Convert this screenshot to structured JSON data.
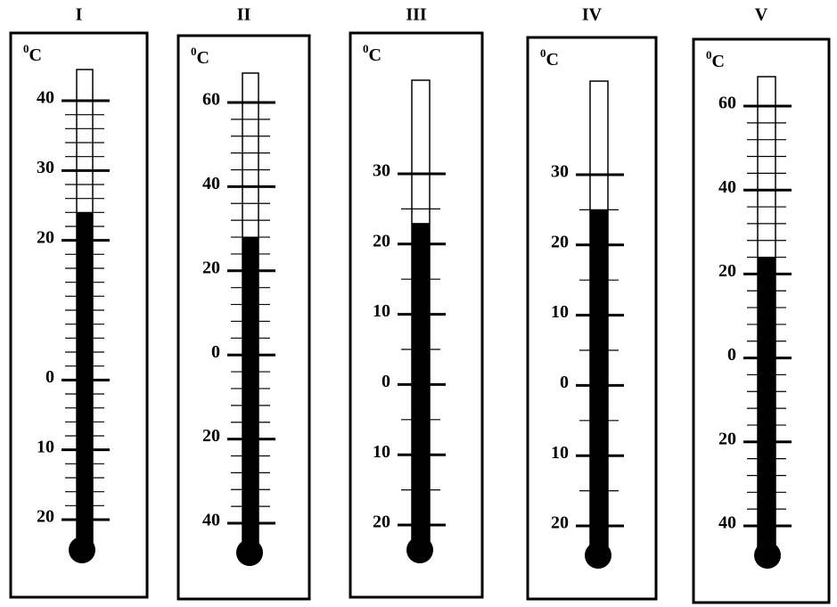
{
  "thermometers": [
    {
      "label": "I",
      "unit_sup": "0",
      "unit": "C",
      "reading": 24,
      "minor_step": 2,
      "ticks": [
        {
          "value": 40,
          "label": "40"
        },
        {
          "value": 30,
          "label": "30"
        },
        {
          "value": 20,
          "label": "20"
        },
        {
          "value": 0,
          "label": "0"
        },
        {
          "value": -10,
          "label": "10"
        },
        {
          "value": -20,
          "label": "20"
        }
      ]
    },
    {
      "label": "II",
      "unit_sup": "0",
      "unit": "C",
      "reading": 28,
      "minor_step": 4,
      "ticks": [
        {
          "value": 60,
          "label": "60"
        },
        {
          "value": 40,
          "label": "40"
        },
        {
          "value": 20,
          "label": "20"
        },
        {
          "value": 0,
          "label": "0"
        },
        {
          "value": -20,
          "label": "20"
        },
        {
          "value": -40,
          "label": "40"
        }
      ]
    },
    {
      "label": "III",
      "unit_sup": "0",
      "unit": "C",
      "reading": 23,
      "minor_step": 5,
      "ticks": [
        {
          "value": 30,
          "label": "30"
        },
        {
          "value": 20,
          "label": "20"
        },
        {
          "value": 10,
          "label": "10"
        },
        {
          "value": 0,
          "label": "0"
        },
        {
          "value": -10,
          "label": "10"
        },
        {
          "value": -20,
          "label": "20"
        }
      ]
    },
    {
      "label": "IV",
      "unit_sup": "0",
      "unit": "C",
      "reading": 25,
      "minor_step": 5,
      "ticks": [
        {
          "value": 30,
          "label": "30"
        },
        {
          "value": 20,
          "label": "20"
        },
        {
          "value": 10,
          "label": "10"
        },
        {
          "value": 0,
          "label": "0"
        },
        {
          "value": -10,
          "label": "10"
        },
        {
          "value": -20,
          "label": "20"
        }
      ]
    },
    {
      "label": "V",
      "unit_sup": "0",
      "unit": "C",
      "reading": 24,
      "minor_step": 4,
      "ticks": [
        {
          "value": 60,
          "label": "60"
        },
        {
          "value": 40,
          "label": "40"
        },
        {
          "value": 20,
          "label": "20"
        },
        {
          "value": 0,
          "label": "0"
        },
        {
          "value": -20,
          "label": "20"
        },
        {
          "value": -40,
          "label": "40"
        }
      ]
    }
  ]
}
